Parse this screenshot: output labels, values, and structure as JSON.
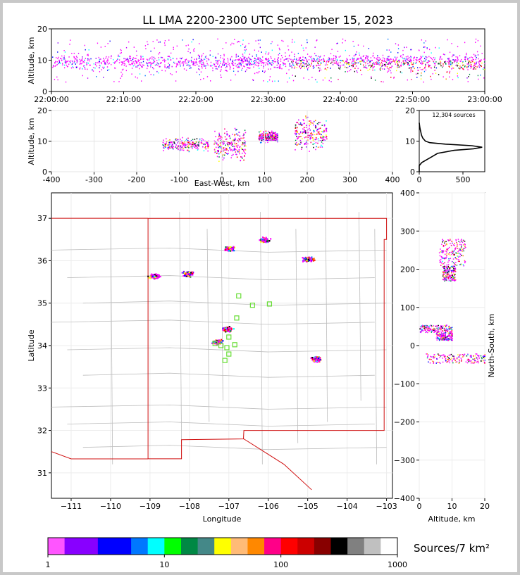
{
  "title": "LL LMA 2200-2300 UTC September 15, 2023",
  "source_count_label": "12,304 sources",
  "colorbar_label": "Sources/7 km²",
  "colorbar_ticks": [
    "1",
    "10",
    "100",
    "1000"
  ],
  "colorbar_colors": [
    "#ff55ff",
    "#8800ff",
    "#8800ff",
    "#0000ff",
    "#0000ff",
    "#0077ff",
    "#00ffff",
    "#00ff00",
    "#008844",
    "#448888",
    "#ffff00",
    "#ffbb77",
    "#ff8800",
    "#ff0088",
    "#ff0000",
    "#cc0000",
    "#880000",
    "#000000",
    "#808080",
    "#c0c0c0",
    "#ffffff"
  ],
  "chart_data": [
    {
      "type": "scatter",
      "panel": "altitude-time",
      "xlabel": "",
      "ylabel": "Altitude, km",
      "xticks": [
        "22:00:00",
        "22:10:00",
        "22:20:00",
        "22:30:00",
        "22:40:00",
        "22:50:00",
        "23:00:00"
      ],
      "xlim": [
        "22:00:00",
        "23:00:00"
      ],
      "ylim": [
        0,
        20
      ],
      "yticks": [
        0,
        10,
        20
      ],
      "note": "dense storm activity at 8-12 km throughout the hour, intensifying after 22:25"
    },
    {
      "type": "scatter",
      "panel": "altitude-eastwest",
      "xlabel": "East-West, km",
      "ylabel": "Altitude, km",
      "xlim": [
        -400,
        400
      ],
      "xticks": [
        -400,
        -300,
        -200,
        -100,
        0,
        100,
        200,
        300,
        400
      ],
      "ylim": [
        0,
        20
      ],
      "yticks": [
        0,
        10,
        20
      ],
      "clusters": [
        {
          "x": [
            -140,
            -30
          ],
          "y": [
            6,
            12
          ]
        },
        {
          "x": [
            -20,
            55
          ],
          "y": [
            2,
            16
          ]
        },
        {
          "x": [
            85,
            130
          ],
          "y": [
            9,
            14
          ]
        },
        {
          "x": [
            170,
            245
          ],
          "y": [
            5,
            20
          ]
        }
      ]
    },
    {
      "type": "line",
      "panel": "altitude-histogram",
      "xlabel": "",
      "ylabel": "",
      "xlim": [
        0,
        750
      ],
      "xticks": [
        0,
        500
      ],
      "ylim": [
        0,
        20
      ],
      "yticks": [
        0,
        10,
        20
      ],
      "altitude": [
        0,
        2,
        3,
        4,
        5,
        6,
        7,
        7.5,
        8,
        8.5,
        9,
        9.5,
        10,
        11,
        12,
        13,
        14,
        15,
        16
      ],
      "sources": [
        0,
        0,
        30,
        90,
        150,
        210,
        400,
        620,
        720,
        600,
        300,
        120,
        70,
        40,
        25,
        18,
        10,
        4,
        0
      ]
    },
    {
      "type": "scatter",
      "panel": "plan-view",
      "xlabel": "Longitude",
      "ylabel": "Latitude",
      "xlim": [
        -111.5,
        -102.85
      ],
      "ylim": [
        30.4,
        37.6
      ],
      "xticks": [
        -111,
        -110,
        -109,
        -108,
        -107,
        -106,
        -105,
        -104,
        -103
      ],
      "yticks": [
        31,
        32,
        33,
        34,
        35,
        36,
        37
      ],
      "clusters": [
        {
          "lon": -107.0,
          "lat": 36.3
        },
        {
          "lon": -106.1,
          "lat": 36.5
        },
        {
          "lon": -105.0,
          "lat": 36.05
        },
        {
          "lon": -108.05,
          "lat": 35.7
        },
        {
          "lon": -108.9,
          "lat": 35.65
        },
        {
          "lon": -107.05,
          "lat": 34.4
        },
        {
          "lon": -107.3,
          "lat": 34.1
        },
        {
          "lon": -104.8,
          "lat": 33.7
        }
      ],
      "stations": [
        {
          "lon": -106.75,
          "lat": 35.17
        },
        {
          "lon": -106.4,
          "lat": 34.95
        },
        {
          "lon": -105.97,
          "lat": 34.98
        },
        {
          "lon": -106.8,
          "lat": 34.65
        },
        {
          "lon": -107.35,
          "lat": 34.05
        },
        {
          "lon": -107.2,
          "lat": 34.0
        },
        {
          "lon": -107.05,
          "lat": 33.95
        },
        {
          "lon": -106.85,
          "lat": 34.02
        },
        {
          "lon": -107.0,
          "lat": 33.8
        },
        {
          "lon": -107.1,
          "lat": 33.65
        },
        {
          "lon": -107.0,
          "lat": 34.2
        }
      ]
    },
    {
      "type": "scatter",
      "panel": "northsouth-altitude",
      "xlabel": "Altitude, km",
      "ylabel": "North-South, km",
      "xlim": [
        0,
        20
      ],
      "xticks": [
        0,
        10,
        20
      ],
      "ylim": [
        -400,
        400
      ],
      "yticks": [
        -400,
        -300,
        -200,
        -100,
        0,
        100,
        200,
        300,
        400
      ],
      "clusters": [
        {
          "x": [
            6,
            14
          ],
          "y": [
            210,
            280
          ]
        },
        {
          "x": [
            7,
            11
          ],
          "y": [
            170,
            210
          ]
        },
        {
          "x": [
            0,
            10
          ],
          "y": [
            35,
            55
          ]
        },
        {
          "x": [
            5,
            10
          ],
          "y": [
            15,
            35
          ]
        },
        {
          "x": [
            2,
            20
          ],
          "y": [
            -45,
            -20
          ]
        }
      ]
    }
  ]
}
